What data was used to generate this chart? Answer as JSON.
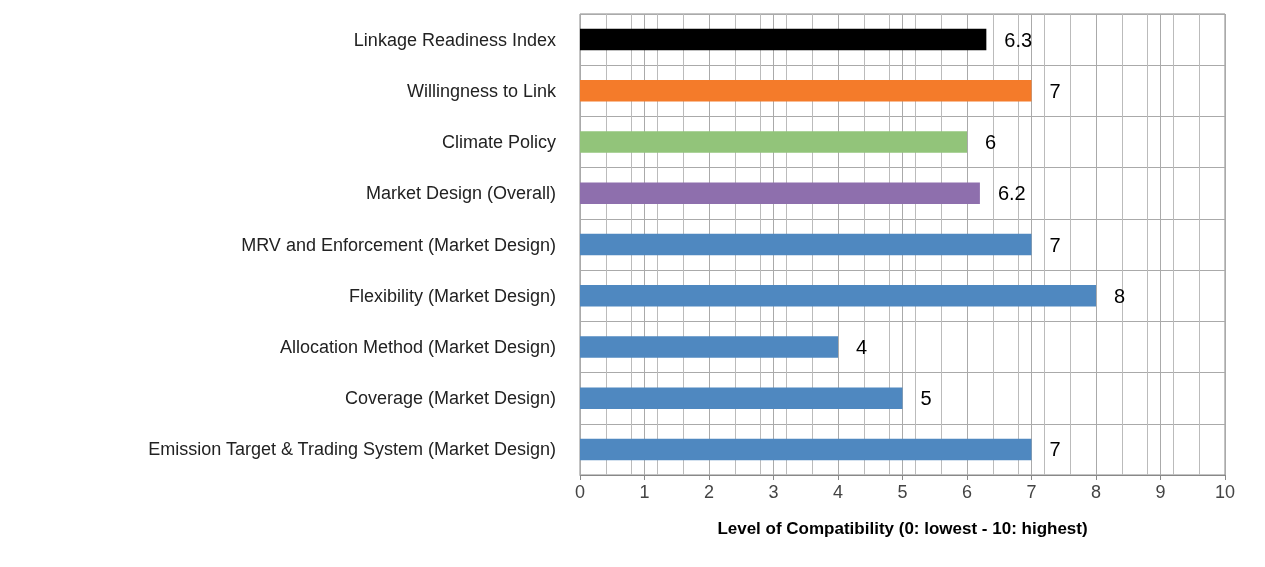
{
  "chart_data": {
    "type": "bar",
    "orientation": "horizontal",
    "xlabel": "Level of Compatibility (0: lowest - 10: highest)",
    "categories": [
      "Linkage Readiness Index",
      "Willingness to Link",
      "Climate Policy",
      "Market Design (Overall)",
      "MRV and Enforcement (Market Design)",
      "Flexibility (Market Design)",
      "Allocation Method (Market Design)",
      "Coverage (Market Design)",
      "Emission Target & Trading System (Market Design)"
    ],
    "values": [
      6.3,
      7,
      6,
      6.2,
      7,
      8,
      4,
      5,
      7
    ],
    "colors": [
      "#000000",
      "#f47b2a",
      "#92c47a",
      "#8e6fad",
      "#4f88c0",
      "#4f88c0",
      "#4f88c0",
      "#4f88c0",
      "#4f88c0"
    ],
    "xlim": [
      0,
      10
    ],
    "xticks": [
      0,
      1,
      2,
      3,
      4,
      5,
      6,
      7,
      8,
      9,
      10
    ],
    "grid": true,
    "data_labels": true
  }
}
